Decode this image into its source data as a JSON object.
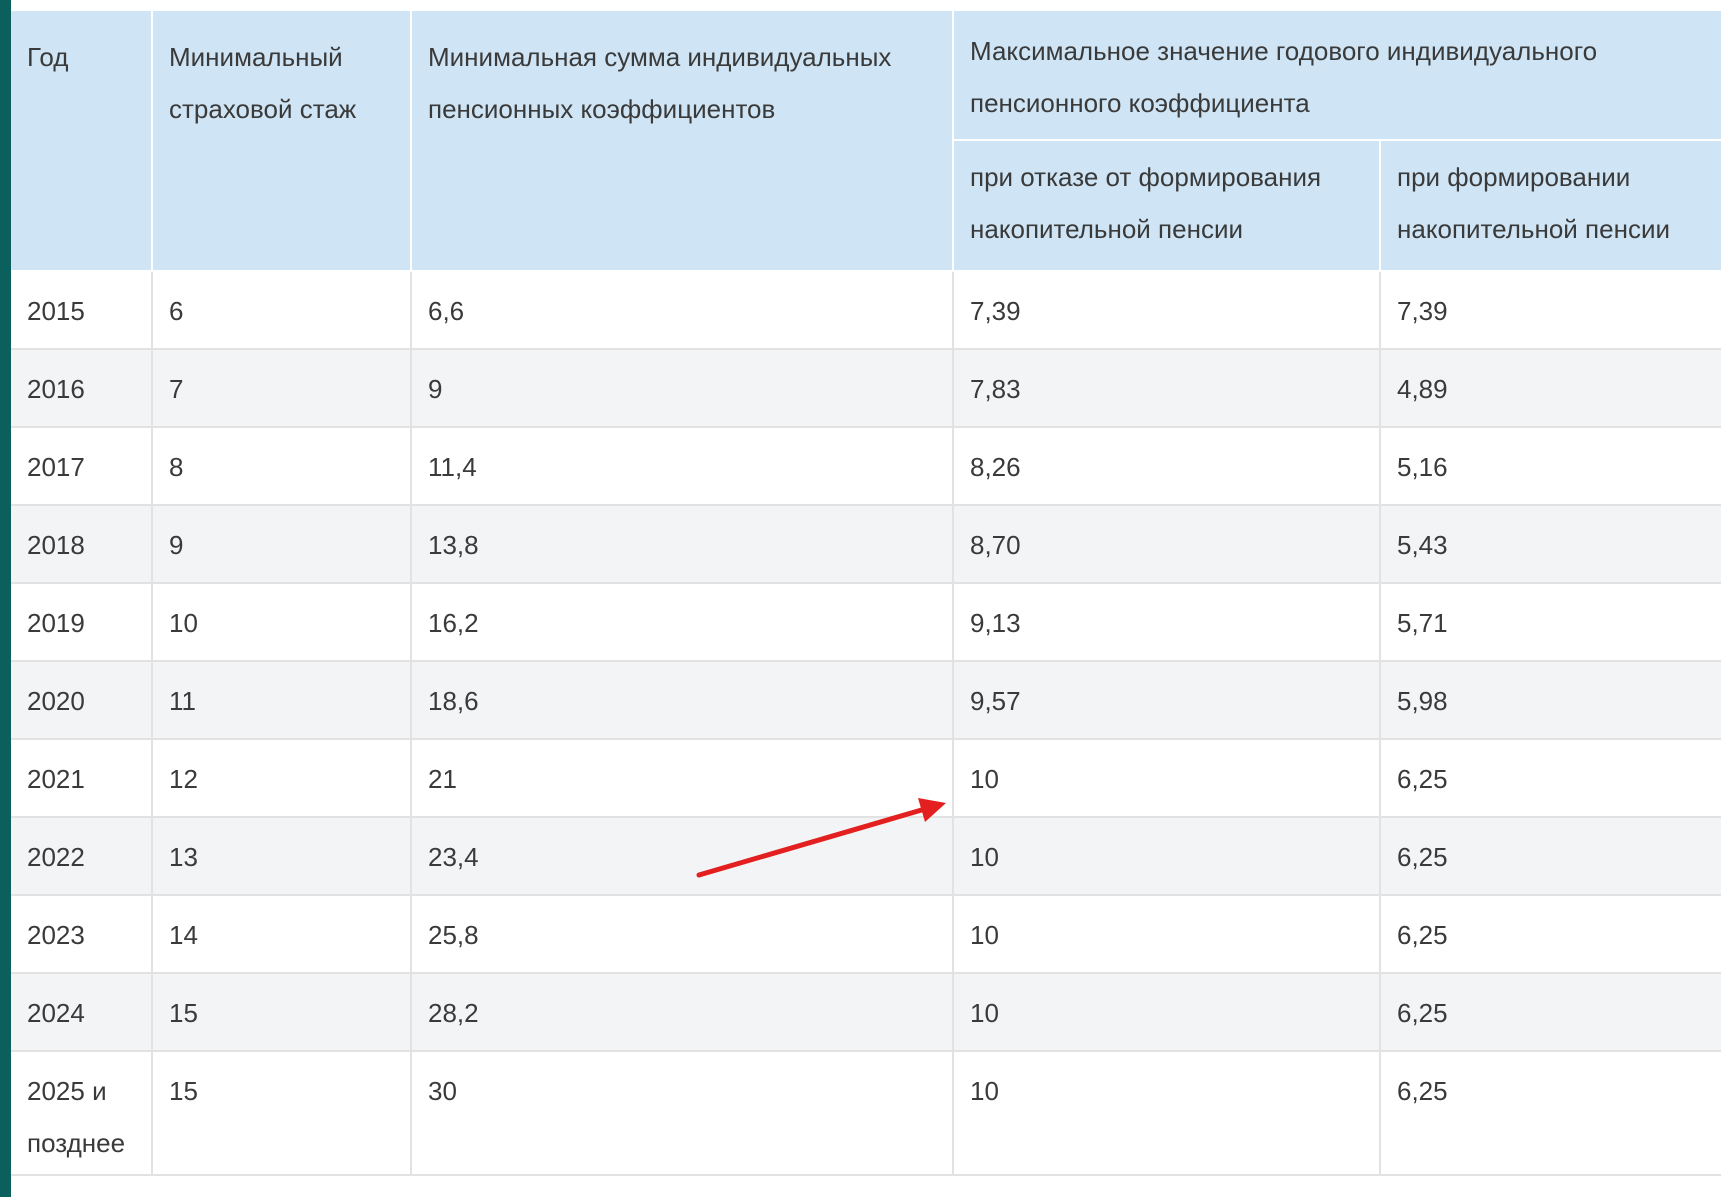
{
  "header": {
    "year": "Год",
    "min_experience": "Минимальный страховой стаж",
    "min_sum": "Минимальная сумма индивидуальных пенсионных коэффициентов",
    "max_coefficient": "Максимальное значение годового индивидуального пенсионного коэффициента",
    "sub_refusal": "при отказе от формирования накопительной пенсии",
    "sub_forming": "при формировании накопительной пенсии"
  },
  "table": {
    "rows": [
      [
        "2015",
        "6",
        "6,6",
        "7,39",
        "7,39"
      ],
      [
        "2016",
        "7",
        "9",
        "7,83",
        "4,89"
      ],
      [
        "2017",
        "8",
        "11,4",
        "8,26",
        "5,16"
      ],
      [
        "2018",
        "9",
        "13,8",
        "8,70",
        "5,43"
      ],
      [
        "2019",
        "10",
        "16,2",
        "9,13",
        "5,71"
      ],
      [
        "2020",
        "11",
        "18,6",
        "9,57",
        "5,98"
      ],
      [
        "2021",
        "12",
        "21",
        "10",
        "6,25"
      ],
      [
        "2022",
        "13",
        "23,4",
        "10",
        "6,25"
      ],
      [
        "2023",
        "14",
        "25,8",
        "10",
        "6,25"
      ],
      [
        "2024",
        "15",
        "28,2",
        "10",
        "6,25"
      ],
      [
        "2025 и позднее",
        "15",
        "30",
        "10",
        "6,25"
      ]
    ]
  }
}
